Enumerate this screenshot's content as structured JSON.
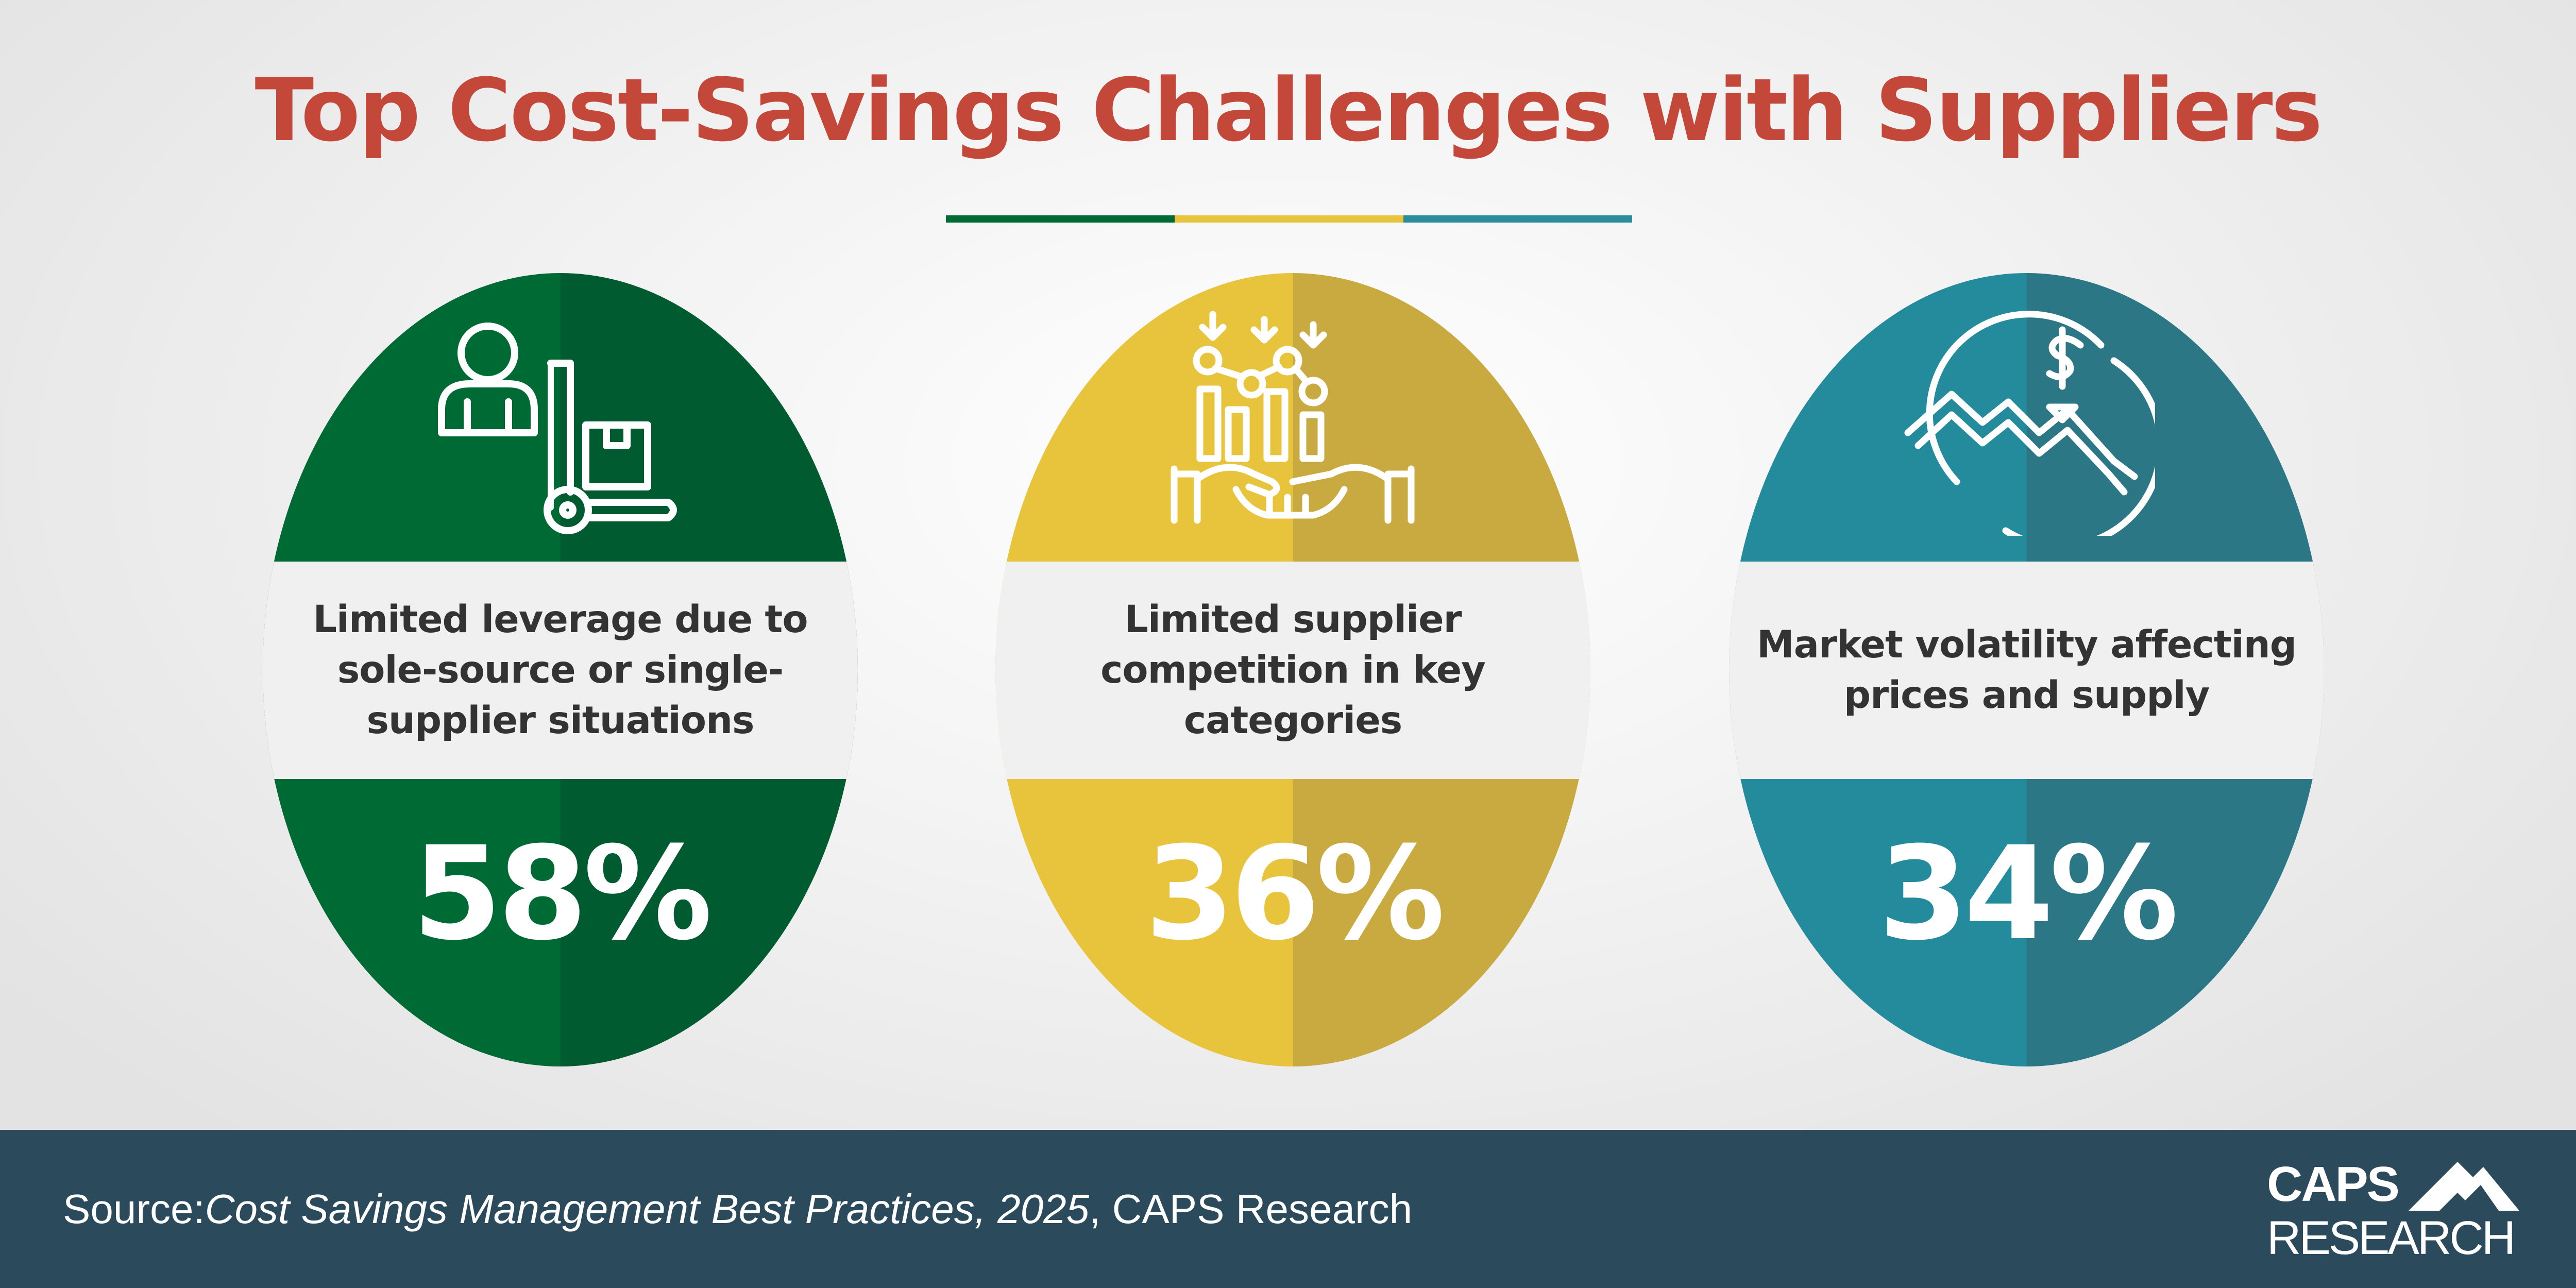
{
  "title": "Top Cost-Savings Challenges with Suppliers",
  "title_rule_colors": [
    "#006a35",
    "#e8c43c",
    "#2a8c9c"
  ],
  "cards": [
    {
      "label": "Limited leverage due to sole-source or single-supplier situations",
      "value": "58%",
      "icon": "person-handtruck-box-icon",
      "color": "#006a35",
      "shade": "#005c30"
    },
    {
      "label": "Limited supplier competition in key categories",
      "value": "36%",
      "icon": "bar-chart-handshake-icon",
      "color": "#e8c43c",
      "shade": "#c8aa40"
    },
    {
      "label": "Market volatility affecting prices and supply",
      "value": "34%",
      "icon": "dollar-volatility-icon",
      "color": "#238b9b",
      "shade": "#2b7785"
    }
  ],
  "footer": {
    "source_prefix": "Source: ",
    "source_title": "Cost Savings Management Best Practices, 2025",
    "source_suffix": ", CAPS Research",
    "background": "#2b4a5c"
  },
  "logo": {
    "line1": "CAPS",
    "line2": "RESEARCH",
    "icon": "mountain-icon"
  }
}
